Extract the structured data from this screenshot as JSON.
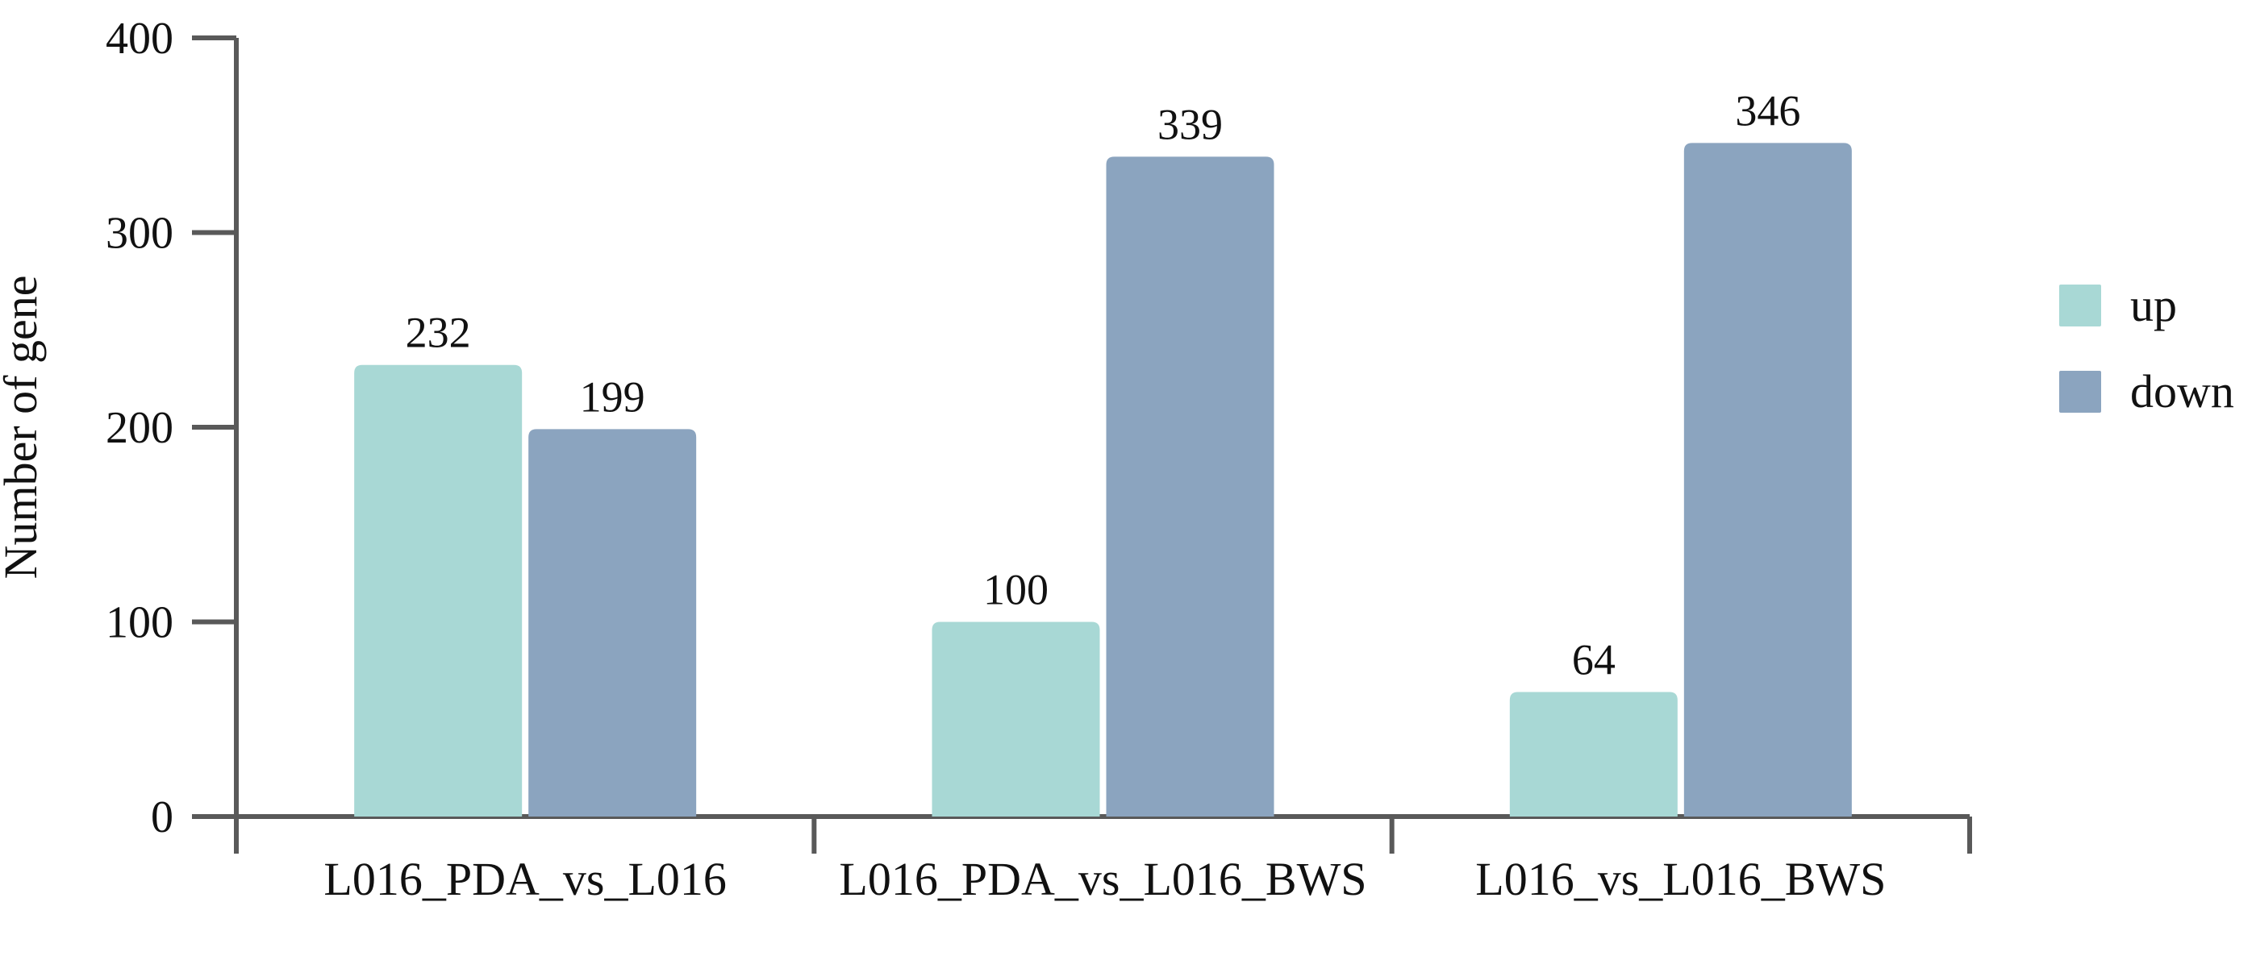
{
  "figure": {
    "background": "#ffffff",
    "axis_color": "#595959",
    "text_color": "#111111"
  },
  "chart_data": {
    "type": "bar",
    "title": "",
    "xlabel": "",
    "ylabel": "Number of gene",
    "ylim": [
      0,
      400
    ],
    "yticks": [
      0,
      100,
      200,
      300,
      400
    ],
    "grid": false,
    "legend_position": "right",
    "bar_value_labels": true,
    "categories": [
      "L016_PDA_vs_L016",
      "L016_PDA_vs_L016_BWS",
      "L016_vs_L016_BWS"
    ],
    "series": [
      {
        "name": "up",
        "color": "#a8d8d5",
        "values": [
          232,
          100,
          64
        ]
      },
      {
        "name": "down",
        "color": "#8ba4bf",
        "values": [
          199,
          339,
          346
        ]
      }
    ],
    "value_labels": {
      "up": [
        "232",
        "100",
        "64"
      ],
      "down": [
        "199",
        "339",
        "346"
      ]
    }
  }
}
